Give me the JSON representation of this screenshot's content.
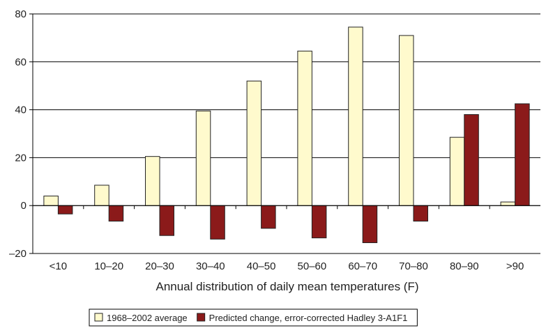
{
  "chart_data": {
    "type": "bar",
    "title": "",
    "xlabel": "Annual distribution of daily mean temperatures (F)",
    "ylabel": "",
    "categories": [
      "<10",
      "10–20",
      "20–30",
      "30–40",
      "40–50",
      "50–60",
      "60–70",
      "70–80",
      "80–90",
      ">90"
    ],
    "series": [
      {
        "name": "1968–2002 average",
        "values": [
          4,
          8.5,
          20.5,
          39.5,
          52,
          64.5,
          74.5,
          71,
          28.5,
          1.5
        ],
        "color": "#FFFACD"
      },
      {
        "name": "Predicted change, error-corrected Hadley 3-A1F1",
        "values": [
          -3.5,
          -6.5,
          -12.5,
          -14,
          -9.5,
          -13.5,
          -15.5,
          -6.5,
          38,
          42.5
        ],
        "color": "#8B1A1A"
      }
    ],
    "ylim": [
      -20,
      80
    ],
    "yticks": [
      -20,
      0,
      20,
      40,
      60,
      80
    ],
    "grid": true,
    "legend_position": "bottom"
  }
}
